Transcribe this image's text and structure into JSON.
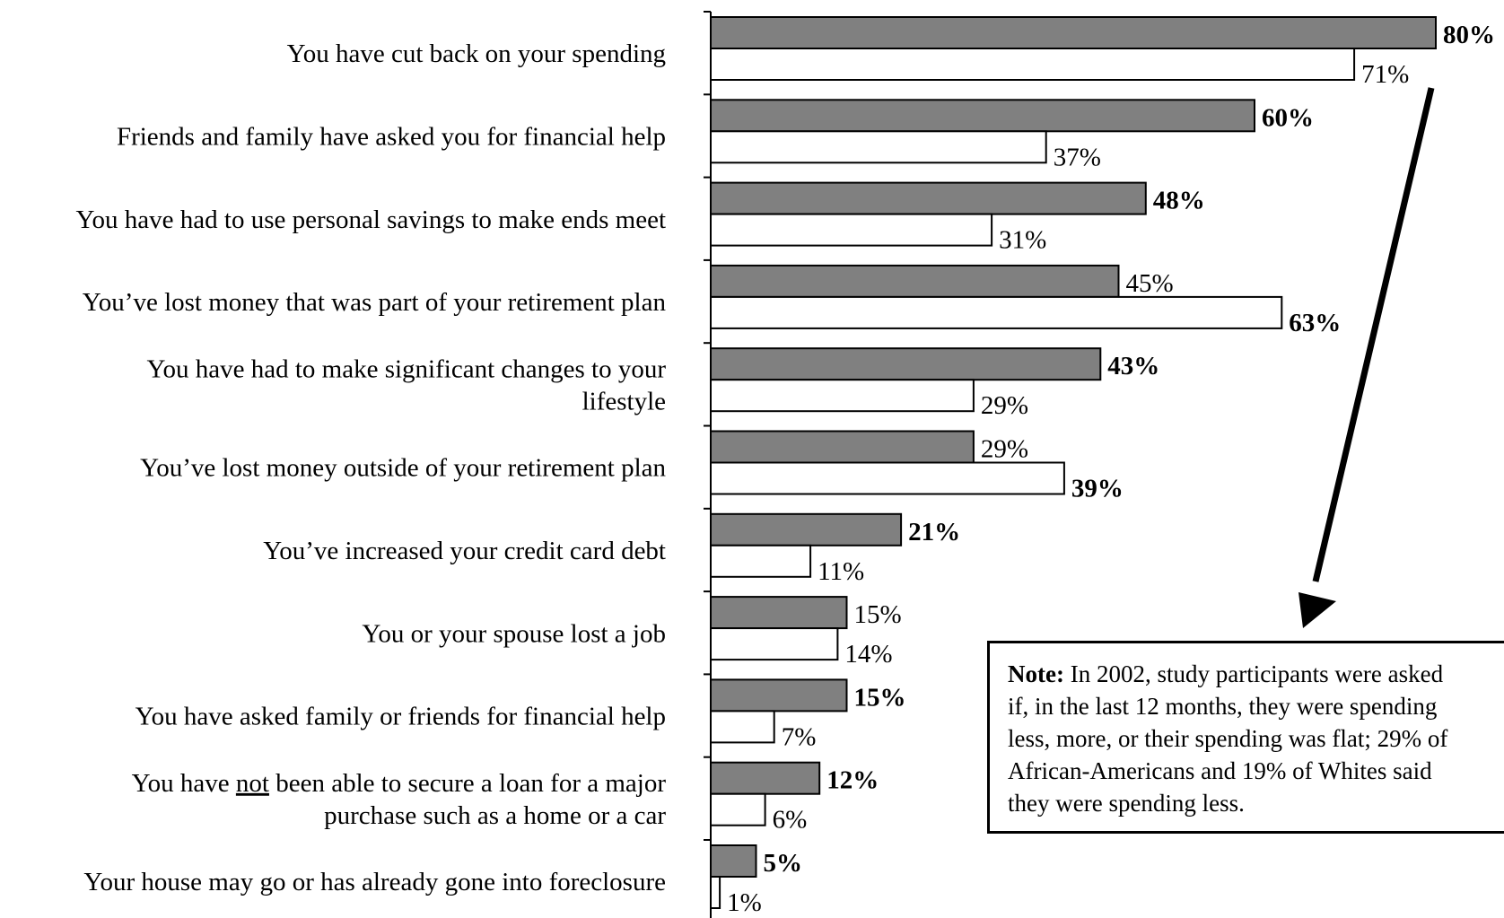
{
  "chart_data": {
    "type": "bar",
    "orientation": "horizontal",
    "categories": [
      "You have cut back on your spending",
      "Friends and family have asked you for financial help",
      "You have had to use personal savings to make ends meet",
      "You’ve lost money that was part of your retirement plan",
      "You have had to make significant changes to your lifestyle",
      "You’ve lost money outside of your retirement plan",
      "You’ve increased your credit card debt",
      "You or your spouse lost a job",
      "You have asked family or friends for financial help",
      "You have not been able to secure a loan for a major purchase such as a home or a car",
      "Your house may go or has already gone into foreclosure"
    ],
    "category_lines": [
      [
        "You have cut back on your spending"
      ],
      [
        "Friends and family have asked you for financial help"
      ],
      [
        "You have had to use personal savings to make ends meet"
      ],
      [
        "You’ve lost money that was part of your retirement plan"
      ],
      [
        "You have had to make significant changes to your",
        "lifestyle"
      ],
      [
        "You’ve lost money outside of your retirement plan"
      ],
      [
        "You’ve increased your credit card debt"
      ],
      [
        "You or your spouse lost a job"
      ],
      [
        "You have asked family or friends for financial help"
      ],
      [
        "You have not been able to secure a loan for a major",
        "purchase such as a home or a car"
      ],
      [
        "Your house may go or has already gone into foreclosure"
      ]
    ],
    "series": [
      {
        "color": "#808080",
        "values": [
          80,
          60,
          48,
          45,
          43,
          29,
          21,
          15,
          15,
          12,
          5
        ],
        "labels": [
          "80%",
          "60%",
          "48%",
          "45%",
          "43%",
          "29%",
          "21%",
          "15%",
          "15%",
          "12%",
          "5%"
        ],
        "bold": [
          true,
          true,
          true,
          false,
          true,
          false,
          true,
          false,
          true,
          true,
          true
        ]
      },
      {
        "color": "#ffffff",
        "values": [
          71,
          37,
          31,
          63,
          29,
          39,
          11,
          14,
          7,
          6,
          1
        ],
        "labels": [
          "71%",
          "37%",
          "31%",
          "63%",
          "29%",
          "39%",
          "11%",
          "14%",
          "7%",
          "6%",
          "1%"
        ],
        "bold": [
          false,
          false,
          false,
          true,
          false,
          true,
          false,
          false,
          false,
          false,
          false
        ]
      }
    ],
    "xlim": [
      0,
      100
    ],
    "grid": false,
    "legend": "none"
  },
  "note": {
    "heading": "Note:",
    "text": " In 2002, study participants were asked\nif, in the last 12 months, they were spending\nless, more, or their spending was flat; 29% of\nAfrican-Americans and 19% of Whites said\nthey were spending less."
  }
}
